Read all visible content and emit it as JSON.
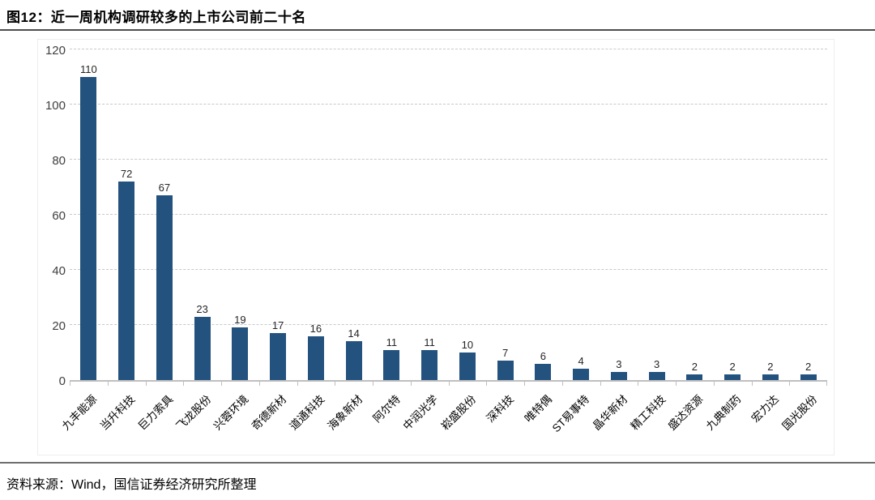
{
  "header": {
    "title": "图12：近一周机构调研较多的上市公司前二十名"
  },
  "chart_data": {
    "type": "bar",
    "title": "近一周机构调研较多的上市公司前二十名",
    "categories": [
      "九丰能源",
      "当升科技",
      "巨力索具",
      "飞龙股份",
      "兴蓉环境",
      "奇德新材",
      "道通科技",
      "海象新材",
      "阿尔特",
      "中润光学",
      "崧盛股份",
      "深科技",
      "唯特偶",
      "ST易事特",
      "晶华新材",
      "精工科技",
      "盛达资源",
      "九典制药",
      "宏力达",
      "国光股份"
    ],
    "values": [
      110,
      72,
      67,
      23,
      19,
      17,
      16,
      14,
      11,
      11,
      10,
      7,
      6,
      4,
      3,
      3,
      2,
      2,
      2,
      2
    ],
    "xlabel": "",
    "ylabel": "",
    "ylim": [
      0,
      120
    ],
    "yticks": [
      0,
      20,
      40,
      60,
      80,
      100,
      120
    ],
    "grid": "horizontal-dashed",
    "legend": "none",
    "data_labels": true,
    "bar_color": "#24527F",
    "gridline_color": "#C9C9C9",
    "axis_color": "#BFBFBF",
    "value_label_color": "#262626",
    "tick_label_color": "#404040"
  },
  "footer": {
    "source": "资料来源：Wind，国信证券经济研究所整理"
  }
}
